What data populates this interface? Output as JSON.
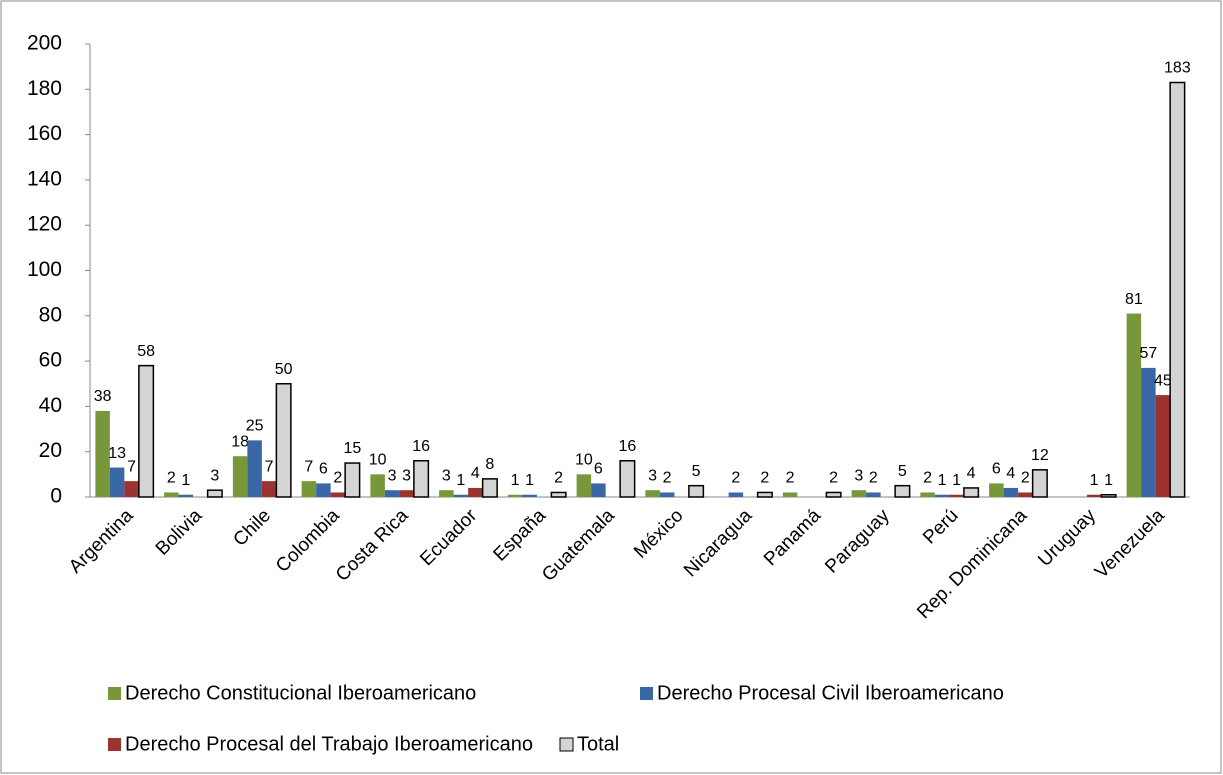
{
  "chart_data": {
    "type": "bar",
    "categories": [
      "Argentina",
      "Bolivia",
      "Chile",
      "Colombia",
      "Costa Rica",
      "Ecuador",
      "España",
      "Guatemala",
      "México",
      "Nicaragua",
      "Panamá",
      "Paraguay",
      "Perú",
      "Rep. Dominicana",
      "Uruguay",
      "Venezuela"
    ],
    "series": [
      {
        "name": "Derecho Constitucional Iberoamericano",
        "color": "#77973a",
        "values": [
          38,
          2,
          18,
          7,
          10,
          3,
          1,
          10,
          3,
          null,
          2,
          3,
          2,
          6,
          null,
          81
        ]
      },
      {
        "name": "Derecho Procesal Civil Iberoamericano",
        "color": "#3a68a6",
        "values": [
          13,
          1,
          25,
          6,
          3,
          1,
          1,
          6,
          2,
          2,
          null,
          2,
          1,
          4,
          null,
          57
        ]
      },
      {
        "name": "Derecho Procesal del Trabajo Iberoamericano",
        "color": "#9c3330",
        "values": [
          7,
          null,
          7,
          2,
          3,
          4,
          null,
          null,
          null,
          null,
          null,
          null,
          1,
          2,
          1,
          45
        ]
      },
      {
        "name": "Total",
        "color": "#d4d4d4",
        "values": [
          58,
          3,
          50,
          15,
          16,
          8,
          2,
          16,
          5,
          2,
          2,
          5,
          4,
          12,
          1,
          183
        ]
      }
    ],
    "ylim": [
      0,
      200
    ],
    "yticks": [
      0,
      20,
      40,
      60,
      80,
      100,
      120,
      140,
      160,
      180,
      200
    ],
    "grid": false,
    "legend": "bottom"
  }
}
